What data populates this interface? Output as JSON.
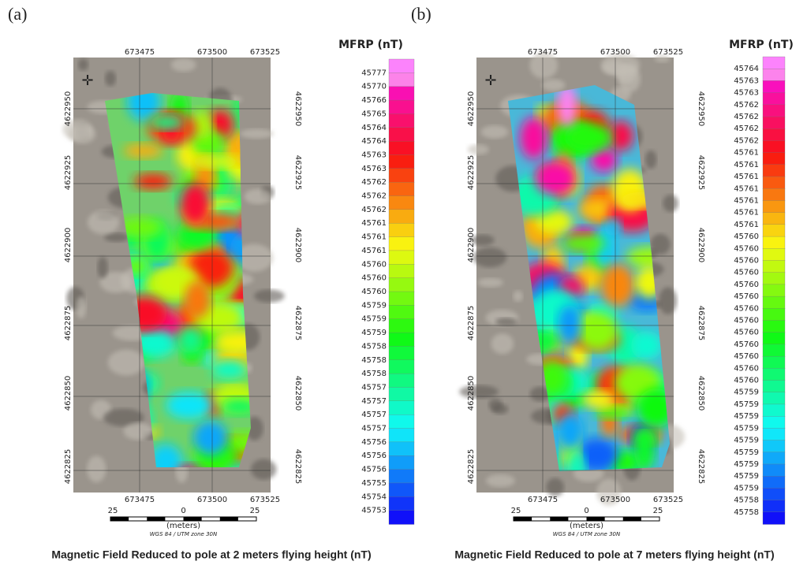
{
  "panels": [
    {
      "label": "(a)",
      "x_ticks_top": [
        "673475",
        "673500",
        "673525"
      ],
      "x_ticks_bottom": [
        "673475",
        "673500",
        "673525"
      ],
      "y_ticks_left": [
        "4622950",
        "4622925",
        "4622900",
        "4622875",
        "4622850",
        "4622825"
      ],
      "y_ticks_right": [
        "4622950",
        "4622925",
        "4622900",
        "4622875",
        "4622850",
        "4622825"
      ],
      "legend": {
        "title": "MFRP (nT)",
        "values": [
          45777,
          45770,
          45766,
          45765,
          45764,
          45764,
          45763,
          45763,
          45762,
          45762,
          45762,
          45761,
          45761,
          45761,
          45760,
          45760,
          45760,
          45759,
          45759,
          45759,
          45758,
          45758,
          45758,
          45757,
          45757,
          45757,
          45757,
          45756,
          45756,
          45756,
          45755,
          45754,
          45753
        ]
      },
      "scale": {
        "labels": [
          "25",
          "0",
          "25"
        ],
        "unit": "(meters)"
      },
      "crs": "WGS 84 / UTM zone 30N",
      "caption": "Magnetic Field Reduced to pole at 2 meters flying height (nT)"
    },
    {
      "label": "(b)",
      "x_ticks_top": [
        "673475",
        "673500",
        "673525"
      ],
      "x_ticks_bottom": [
        "673475",
        "673500",
        "673525"
      ],
      "y_ticks_left": [
        "4622950",
        "4622925",
        "4622900",
        "4622875",
        "4622850",
        "4622825"
      ],
      "y_ticks_right": [
        "4622950",
        "4622925",
        "4622900",
        "4622875",
        "4622850",
        "4622825"
      ],
      "legend": {
        "title": "MFRP (nT)",
        "values": [
          45764,
          45763,
          45763,
          45762,
          45762,
          45762,
          45762,
          45761,
          45761,
          45761,
          45761,
          45761,
          45761,
          45761,
          45760,
          45760,
          45760,
          45760,
          45760,
          45760,
          45760,
          45760,
          45760,
          45760,
          45760,
          45760,
          45760,
          45759,
          45759,
          45759,
          45759,
          45759,
          45759,
          45759,
          45759,
          45759,
          45758,
          45758
        ]
      },
      "scale": {
        "labels": [
          "25",
          "0",
          "25"
        ],
        "unit": "(meters)"
      },
      "crs": "WGS 84 / UTM zone 30N",
      "caption": "Magnetic Field Reduced to pole at 7 meters flying height (nT)"
    }
  ]
}
